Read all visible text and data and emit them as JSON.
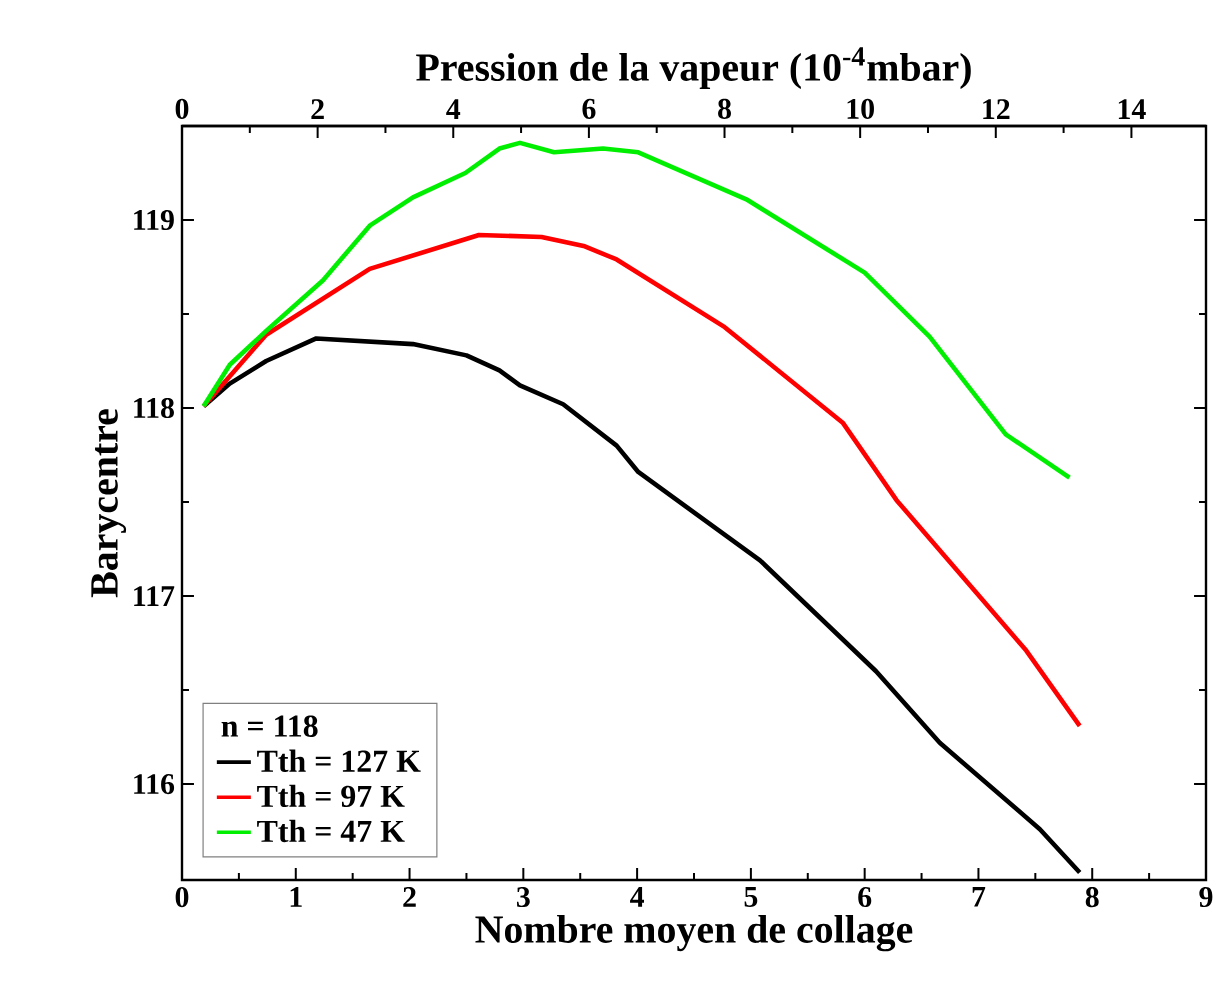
{
  "chart_data": {
    "type": "line",
    "xlabel": "Nombre moyen de collage",
    "ylabel": "Barycentre",
    "x2label": "Pression de la vapeur (10$^{-4}$mbar)",
    "legend_title": "n = 118",
    "legend": "bottom left",
    "grid": false,
    "marker": "none",
    "line_style": "solid",
    "xlim": [
      0,
      9
    ],
    "xticks": [
      0,
      1,
      2,
      3,
      4,
      5,
      6,
      7,
      8,
      9
    ],
    "x2lim": [
      0,
      15.1
    ],
    "x2ticks": [
      0,
      2,
      4,
      6,
      8,
      10,
      12,
      14
    ],
    "ylim": [
      115.49,
      119.5
    ],
    "yticks": [
      116,
      117,
      118,
      119
    ],
    "series": [
      {
        "name": "Tth = 127 K",
        "color": "#000000",
        "x": [
          0.19,
          0.42,
          0.74,
          1.18,
          2.03,
          2.5,
          2.79,
          2.97,
          3.35,
          3.82,
          4.01,
          5.08,
          6.1,
          6.66,
          7.54,
          7.89
        ],
        "values": [
          118.01,
          118.13,
          118.25,
          118.37,
          118.34,
          118.28,
          118.2,
          118.12,
          118.02,
          117.8,
          117.66,
          117.19,
          116.6,
          116.22,
          115.76,
          115.53
        ]
      },
      {
        "name": "Tth = 97 K",
        "color": "#ff0000",
        "x": [
          0.19,
          0.74,
          1.65,
          2.61,
          3.16,
          3.54,
          3.82,
          4.77,
          5.81,
          6.28,
          7.42,
          7.89
        ],
        "values": [
          118.01,
          118.39,
          118.74,
          118.92,
          118.91,
          118.86,
          118.79,
          118.43,
          117.92,
          117.51,
          116.71,
          116.31
        ]
      },
      {
        "name": "Tth = 47 K",
        "color": "#00ee00",
        "x": [
          0.19,
          0.42,
          0.74,
          1.24,
          1.65,
          2.03,
          2.49,
          2.79,
          2.97,
          3.27,
          3.7,
          4.01,
          4.96,
          6.0,
          6.57,
          7.24,
          7.8
        ],
        "values": [
          118.01,
          118.23,
          118.41,
          118.68,
          118.97,
          119.12,
          119.25,
          119.38,
          119.41,
          119.36,
          119.38,
          119.36,
          119.11,
          118.72,
          118.38,
          117.86,
          117.63
        ]
      }
    ]
  }
}
